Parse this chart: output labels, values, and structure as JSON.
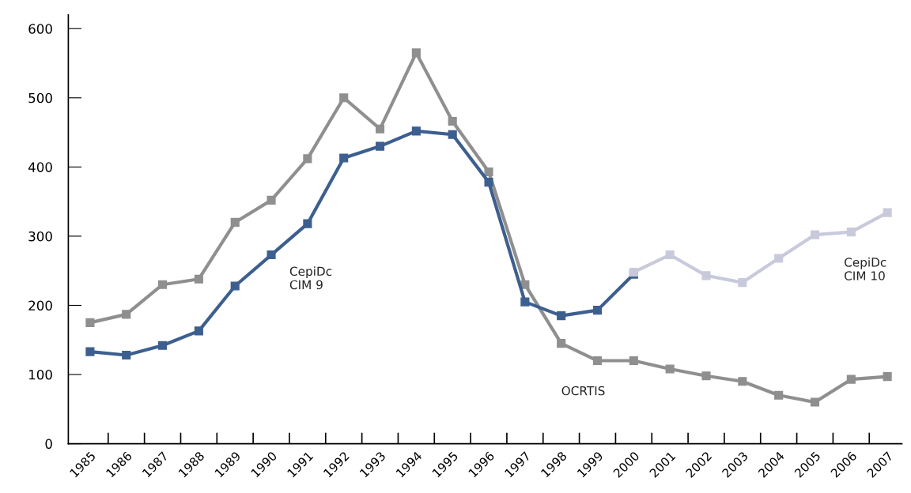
{
  "chart_data": {
    "type": "line",
    "categories": [
      "1985",
      "1986",
      "1987",
      "1988",
      "1989",
      "1990",
      "1991",
      "1992",
      "1993",
      "1994",
      "1995",
      "1996",
      "1997",
      "1998",
      "1999",
      "2000",
      "2001",
      "2002",
      "2003",
      "2004",
      "2005",
      "2006",
      "2007"
    ],
    "series": [
      {
        "name": "OCRTIS",
        "color": "#8f8f8f",
        "values": [
          175,
          187,
          230,
          238,
          320,
          352,
          412,
          500,
          455,
          565,
          466,
          393,
          230,
          145,
          120,
          120,
          108,
          98,
          90,
          70,
          60,
          93,
          97
        ]
      },
      {
        "name": "CepiDc\nCIM 9",
        "color": "#3d5f8f",
        "values": [
          133,
          128,
          142,
          163,
          228,
          273,
          318,
          413,
          430,
          452,
          447,
          378,
          205,
          185,
          193,
          245,
          null,
          null,
          null,
          null,
          null,
          null,
          null
        ]
      },
      {
        "name": "CepiDc\nCIM 10",
        "color": "#c8cadc",
        "values": [
          null,
          null,
          null,
          null,
          null,
          null,
          null,
          null,
          null,
          null,
          null,
          null,
          null,
          null,
          null,
          248,
          273,
          243,
          233,
          268,
          302,
          306,
          334
        ]
      }
    ],
    "ylim": [
      0,
      620
    ],
    "yticks": [
      0,
      100,
      200,
      300,
      400,
      500,
      600
    ],
    "grid": false,
    "legend": false,
    "marker": "square",
    "line_style": "solid"
  }
}
